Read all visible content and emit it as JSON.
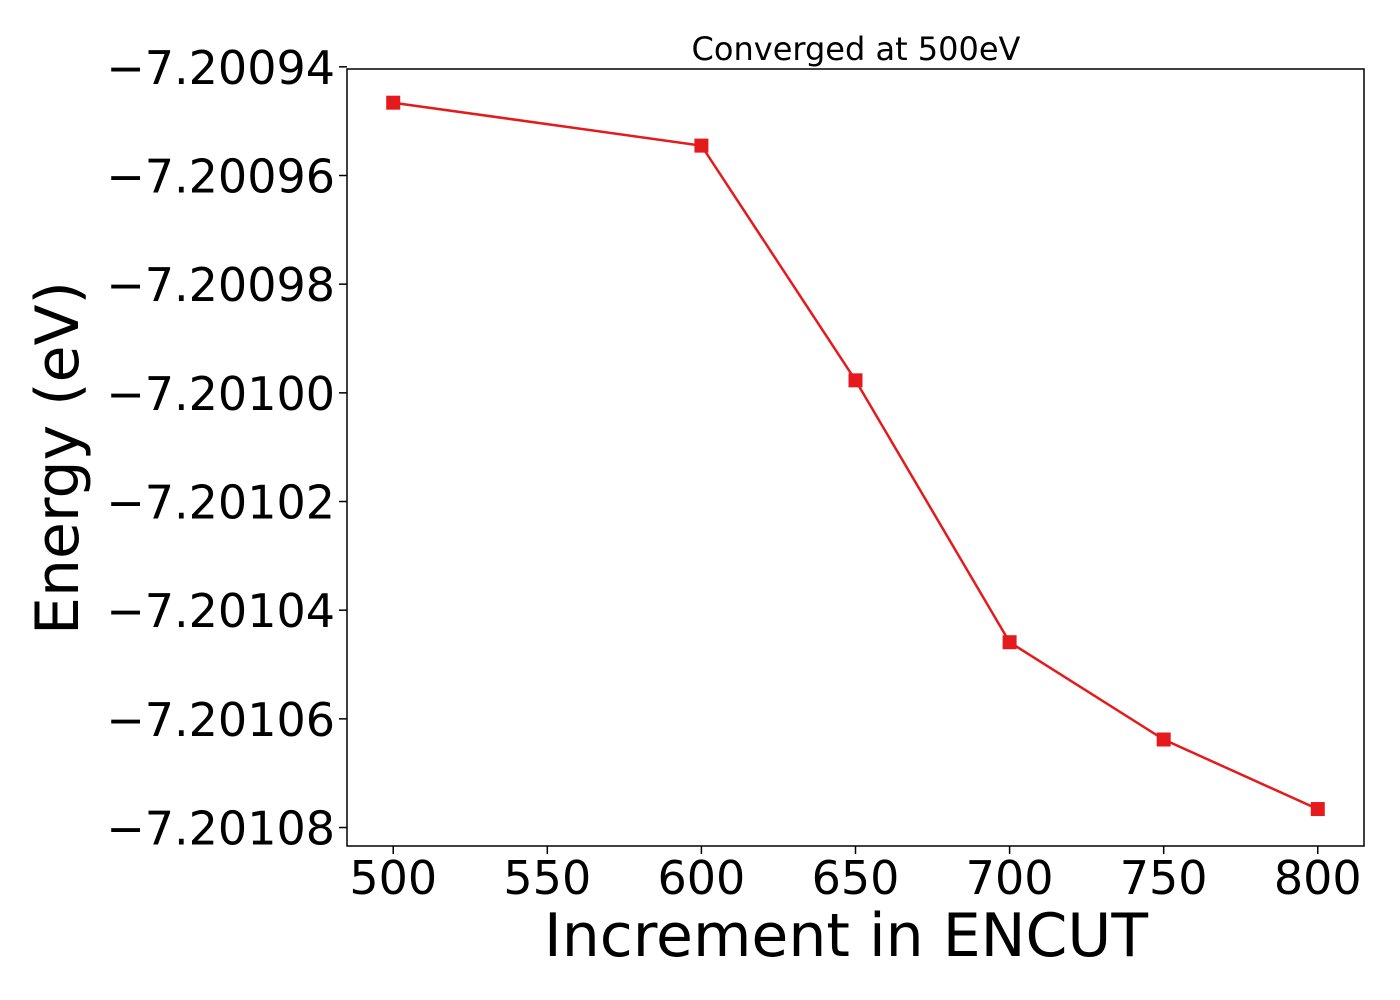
{
  "chart_data": {
    "type": "line",
    "title": "Converged at 500eV",
    "xlabel": "Increment in ENCUT",
    "ylabel": "Energy (eV)",
    "x": [
      500,
      600,
      650,
      700,
      750,
      800
    ],
    "series": [
      {
        "values": [
          -7.2009466,
          -7.2009545,
          -7.2009977,
          -7.2010459,
          -7.2010638,
          -7.2010766
        ],
        "color": "#e41a1c",
        "marker": "square"
      }
    ],
    "xticks": [
      500,
      550,
      600,
      650,
      700,
      750,
      800
    ],
    "xtick_labels": [
      "500",
      "550",
      "600",
      "650",
      "700",
      "750",
      "800"
    ],
    "yticks": [
      -7.20094,
      -7.20096,
      -7.20098,
      -7.201,
      -7.20102,
      -7.20104,
      -7.20106,
      -7.20108
    ],
    "ytick_labels": [
      "−7.20094",
      "−7.20096",
      "−7.20098",
      "−7.20100",
      "−7.20102",
      "−7.20104",
      "−7.20106",
      "−7.20108"
    ],
    "xlim": [
      485,
      815
    ],
    "ylim": [
      -7.2010834,
      -7.2009404
    ],
    "grid": false,
    "legend": false
  }
}
